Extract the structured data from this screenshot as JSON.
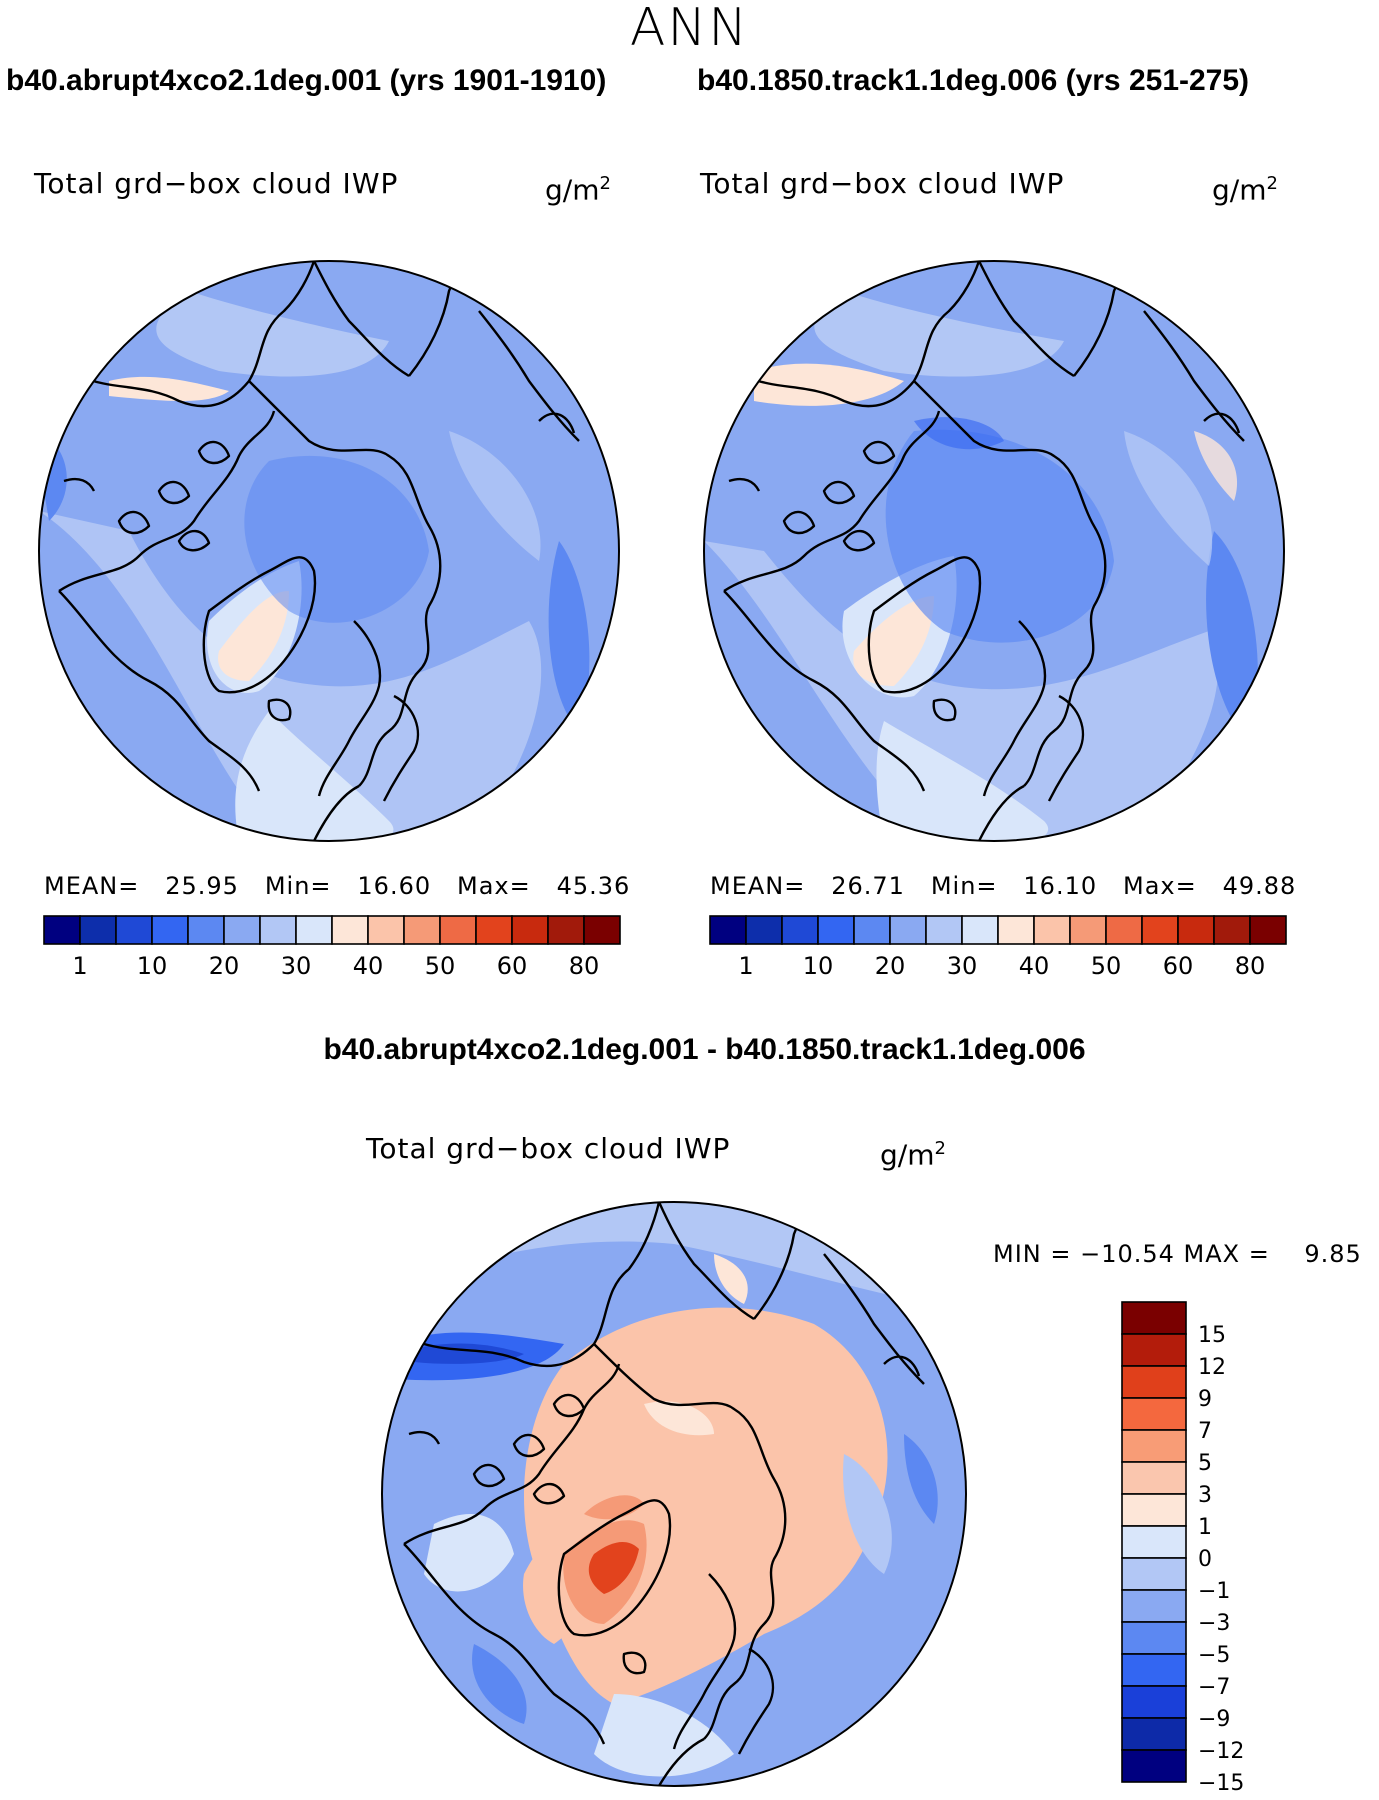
{
  "figure": {
    "title": "ANN",
    "difference_title": "b40.abrupt4xco2.1deg.001 - b40.1850.track1.1deg.006"
  },
  "panels": [
    {
      "id": "case",
      "run_title": "b40.abrupt4xco2.1deg.001 (yrs 1901-1910)",
      "variable": "Total grd−box cloud IWP",
      "units_base": "g/m",
      "units_exp": "2",
      "stats": "MEAN=   25.95   Min=   16.60   Max=   45.36"
    },
    {
      "id": "control",
      "run_title": "b40.1850.track1.1deg.006 (yrs 251-275)",
      "variable": "Total grd−box cloud IWP",
      "units_base": "g/m",
      "units_exp": "2",
      "stats": "MEAN=   26.71   Min=   16.10   Max=   49.88"
    },
    {
      "id": "difference",
      "variable": "Total grd−box cloud IWP",
      "units_base": "g/m",
      "units_exp": "2",
      "stats": "MIN = −10.54 MAX =    9.85"
    }
  ],
  "colorbars": {
    "absolute": {
      "colors": [
        "#000080",
        "#0d2eab",
        "#1f49d6",
        "#3366f2",
        "#5c88f2",
        "#8aa9f2",
        "#b2c7f5",
        "#d9e6fa",
        "#fde6d8",
        "#fbc4aa",
        "#f59a77",
        "#ee6a45",
        "#e2431d",
        "#c82a0e",
        "#a11a0b",
        "#7a0000"
      ],
      "labels": [
        "1",
        "10",
        "20",
        "30",
        "40",
        "50",
        "60",
        "80"
      ]
    },
    "difference": {
      "colors": [
        "#7a0000",
        "#b31c0b",
        "#e0401b",
        "#f4683e",
        "#f89c76",
        "#fac6ae",
        "#fde6d8",
        "#d9e6fa",
        "#b2c7f5",
        "#8aa9f2",
        "#5c88f2",
        "#3366f2",
        "#1a40d9",
        "#0d2aa8",
        "#000080"
      ],
      "labels": [
        "15",
        "12",
        "9",
        "7",
        "5",
        "3",
        "1",
        "0",
        "−1",
        "−3",
        "−5",
        "−7",
        "−9",
        "−12",
        "−15"
      ]
    }
  },
  "map_colors": {
    "ocean_base": "#8aa9f2",
    "mid_blue": "#5c88f2",
    "light_blue": "#b2c7f5",
    "pale_blue": "#d9e6fa",
    "pale_orange": "#fde6d8",
    "salmon": "#fbc4aa",
    "orange": "#f59a77",
    "red": "#e2431d",
    "dark_blue": "#1f49d6",
    "coast": "#000000"
  }
}
